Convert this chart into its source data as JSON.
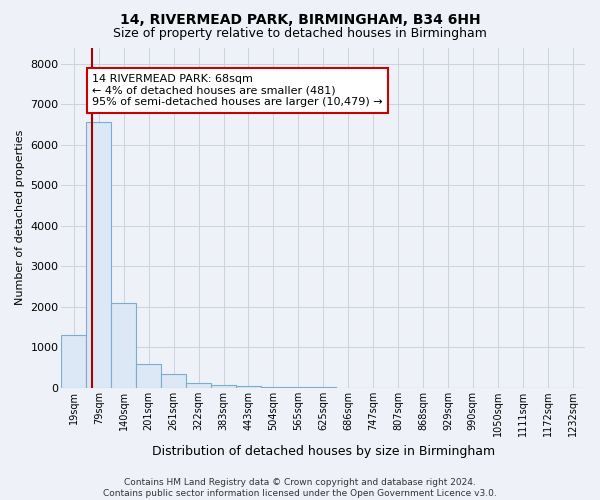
{
  "title1": "14, RIVERMEAD PARK, BIRMINGHAM, B34 6HH",
  "title2": "Size of property relative to detached houses in Birmingham",
  "xlabel": "Distribution of detached houses by size in Birmingham",
  "ylabel": "Number of detached properties",
  "footnote": "Contains HM Land Registry data © Crown copyright and database right 2024.\nContains public sector information licensed under the Open Government Licence v3.0.",
  "bin_labels": [
    "19sqm",
    "79sqm",
    "140sqm",
    "201sqm",
    "261sqm",
    "322sqm",
    "383sqm",
    "443sqm",
    "504sqm",
    "565sqm",
    "625sqm",
    "686sqm",
    "747sqm",
    "807sqm",
    "868sqm",
    "929sqm",
    "990sqm",
    "1050sqm",
    "1111sqm",
    "1172sqm",
    "1232sqm"
  ],
  "bar_values": [
    1300,
    6550,
    2100,
    600,
    350,
    130,
    80,
    50,
    30,
    18,
    12,
    8,
    6,
    4,
    3,
    2,
    2,
    1,
    1,
    1,
    0
  ],
  "bar_fill_color": "#dce8f5",
  "bar_edge_color": "#7aadcf",
  "grid_color": "#c8d4e0",
  "background_color": "#eef2f8",
  "annotation_text": "14 RIVERMEAD PARK: 68sqm\n← 4% of detached houses are smaller (481)\n95% of semi-detached houses are larger (10,479) →",
  "annotation_box_facecolor": "#ffffff",
  "annotation_border_color": "#cc0000",
  "vline_color": "#aa0000",
  "vline_x": 0.72,
  "ylim": [
    0,
    8400
  ],
  "yticks": [
    0,
    1000,
    2000,
    3000,
    4000,
    5000,
    6000,
    7000,
    8000
  ],
  "title1_fontsize": 10,
  "title2_fontsize": 9,
  "ylabel_fontsize": 8,
  "xlabel_fontsize": 9,
  "tick_fontsize": 7,
  "annot_fontsize": 8
}
